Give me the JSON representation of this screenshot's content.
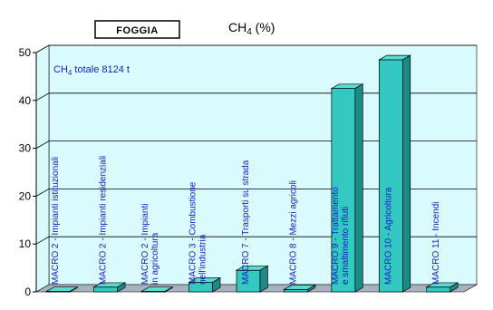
{
  "chart_data": {
    "type": "bar",
    "title_main": "CH",
    "title_sub": "4",
    "title_suffix": " (%)",
    "location_label": "FOGGIA",
    "note_main": "CH",
    "note_sub": "4",
    "note_suffix": " totale 8124  t",
    "categories": [
      "MACRO 2 - Impianti istituzionali",
      "MACRO 2 - Impianti residenziali",
      "MACRO 2 - Impianti in agricoltura",
      "MACRO 3 - Combustione nell'industria",
      "MACRO 7 - Trasporti su strada",
      "MACRO 8 - Mezzi agricoli",
      "MACRO 9 - Trattamento e smaltimento rifiuti",
      "MACRO 10 - Agricoltura",
      "MACRO 11 - Incendi"
    ],
    "values": [
      0.1,
      1.0,
      0.1,
      2.0,
      4.5,
      0.5,
      42.5,
      48.5,
      1.0
    ],
    "ylim": [
      0,
      50
    ],
    "yticks": [
      "0",
      "10",
      "20",
      "30",
      "40",
      "50"
    ],
    "colors": {
      "bar_front": "#33c9c1",
      "bar_top": "#55dcd4",
      "bar_side": "#1c8b85",
      "wall": "#d9fbfd",
      "grid": "#000000"
    }
  }
}
